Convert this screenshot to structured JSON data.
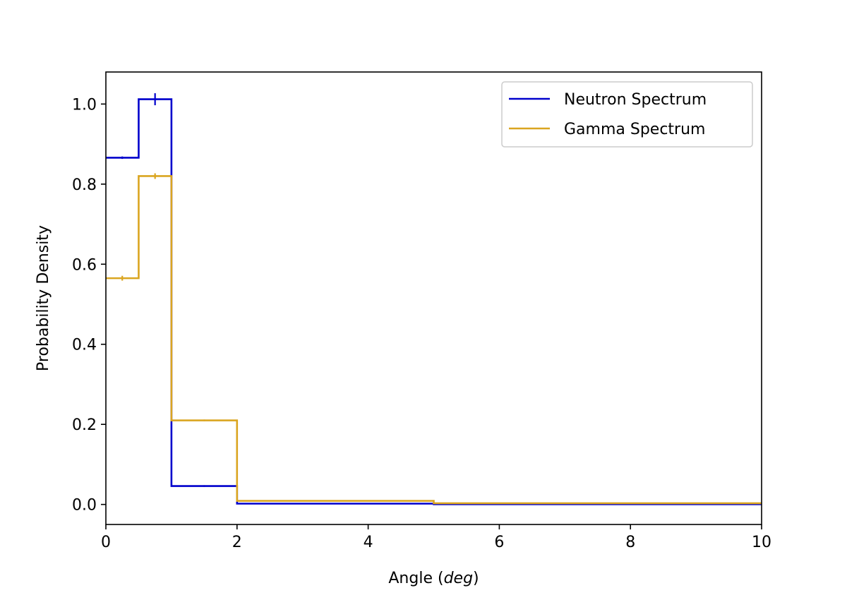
{
  "chart_data": {
    "type": "line",
    "style": "step-histogram",
    "xlabel_prefix": "Angle (",
    "xlabel_unit": "deg",
    "xlabel_suffix": ")",
    "ylabel": "Probability Density",
    "xlim": [
      0,
      10
    ],
    "ylim": [
      -0.05,
      1.08
    ],
    "x_ticks": [
      0,
      2,
      4,
      6,
      8,
      10
    ],
    "x_tick_labels": [
      "0",
      "2",
      "4",
      "6",
      "8",
      "10"
    ],
    "y_ticks": [
      0.0,
      0.2,
      0.4,
      0.6,
      0.8,
      1.0
    ],
    "y_tick_labels": [
      "0.0",
      "0.2",
      "0.4",
      "0.6",
      "0.8",
      "1.0"
    ],
    "grid": false,
    "legend_position": "top-right",
    "bin_edges": [
      0,
      0.5,
      1,
      2,
      5,
      10
    ],
    "series": [
      {
        "name": "Neutron Spectrum",
        "color": "#0000cc",
        "values": [
          0.866,
          1.012,
          0.046,
          0.002,
          0.0005
        ],
        "errors": [
          0.003,
          0.015,
          0.002,
          0.0005,
          0.0002
        ]
      },
      {
        "name": "Gamma Spectrum",
        "color": "#daa520",
        "values": [
          0.565,
          0.82,
          0.21,
          0.009,
          0.003
        ],
        "errors": [
          0.006,
          0.007,
          0.002,
          0.0005,
          0.0002
        ]
      }
    ]
  }
}
